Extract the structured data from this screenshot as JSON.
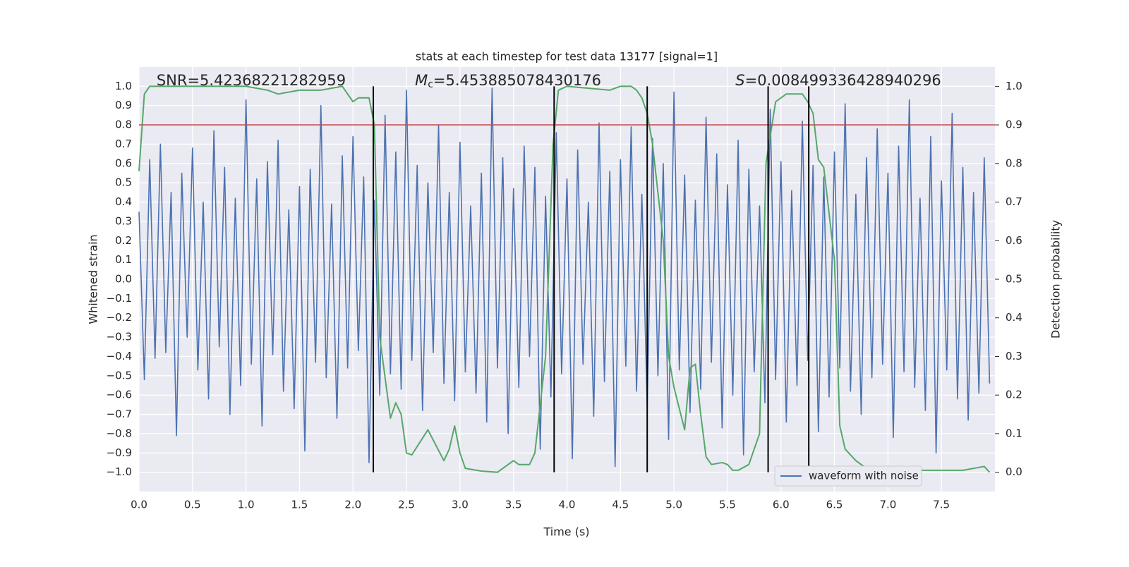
{
  "chart_data": {
    "type": "line",
    "title": "stats at each timestep for test data 13177 [signal=1]",
    "xlabel": "Time (s)",
    "ylabel": "Whitened strain",
    "y2label": "Detection probability",
    "annotations": [
      [
        "SNR=5.42368221282959"
      ],
      [
        "M",
        "c",
        "=5.453885078430176"
      ],
      [
        "S",
        "=0.008499336428940296"
      ]
    ],
    "xlim": [
      0,
      8
    ],
    "ylim": [
      -1.1,
      1.1
    ],
    "y2lim": [
      -0.05,
      1.05
    ],
    "xticks": [
      {
        "value": 0,
        "label": "0.0"
      },
      0.5,
      {
        "value": 1,
        "label": "1.0"
      },
      1.5,
      {
        "value": 2,
        "label": "2.0"
      },
      2.5,
      {
        "value": 3,
        "label": "3.0"
      },
      3.5,
      {
        "value": 4,
        "label": "4.0"
      },
      4.5,
      {
        "value": 5,
        "label": "5.0"
      },
      5.5,
      {
        "value": 6,
        "label": "6.0"
      },
      6.5,
      {
        "value": 7,
        "label": "7.0"
      },
      7.5
    ],
    "yticks": [
      {
        "value": 1,
        "label": "1.0"
      },
      0.9,
      0.8,
      0.7,
      0.6,
      0.5,
      0.4,
      0.3,
      0.2,
      0.1,
      {
        "value": 0,
        "label": "0.0"
      },
      {
        "value": -0.1,
        "label": "−0.1"
      },
      {
        "value": -0.2,
        "label": "−0.2"
      },
      {
        "value": -0.3,
        "label": "−0.3"
      },
      {
        "value": -0.4,
        "label": "−0.4"
      },
      {
        "value": -0.5,
        "label": "−0.5"
      },
      {
        "value": -0.6,
        "label": "−0.6"
      },
      {
        "value": -0.7,
        "label": "−0.7"
      },
      {
        "value": -0.8,
        "label": "−0.8"
      },
      {
        "value": -0.9,
        "label": "−0.9"
      },
      {
        "value": -1,
        "label": "−1.0"
      }
    ],
    "y2ticks": [
      {
        "value": 0,
        "label": "0.0"
      },
      0.1,
      0.2,
      0.3,
      0.4,
      0.5,
      0.6,
      0.7,
      0.8,
      0.9,
      {
        "value": 1,
        "label": "1.0"
      }
    ],
    "grid": true,
    "legend": "lower right",
    "threshold": {
      "value": 0.8,
      "color": "#c44e52"
    },
    "markers": {
      "x": [
        2.19,
        3.88,
        4.75,
        5.88,
        6.26
      ],
      "ymin": -1,
      "ymax": 1,
      "color": "#000000"
    },
    "series": [
      {
        "name": "waveform with noise",
        "color": "#4c72b0",
        "x": [
          0,
          0.05,
          0.1,
          0.15,
          0.2,
          0.25,
          0.3,
          0.35,
          0.4,
          0.45,
          0.5,
          0.55,
          0.6,
          0.65,
          0.7,
          0.75,
          0.8,
          0.85,
          0.9,
          0.95,
          1,
          1.05,
          1.1,
          1.15,
          1.2,
          1.25,
          1.3,
          1.35,
          1.4,
          1.45,
          1.5,
          1.55,
          1.6,
          1.65,
          1.7,
          1.75,
          1.8,
          1.85,
          1.9,
          1.95,
          2,
          2.05,
          2.1,
          2.15,
          2.2,
          2.25,
          2.3,
          2.35,
          2.4,
          2.45,
          2.5,
          2.55,
          2.6,
          2.65,
          2.7,
          2.75,
          2.8,
          2.85,
          2.9,
          2.95,
          3,
          3.05,
          3.1,
          3.15,
          3.2,
          3.25,
          3.3,
          3.35,
          3.4,
          3.45,
          3.5,
          3.55,
          3.6,
          3.65,
          3.7,
          3.75,
          3.8,
          3.85,
          3.9,
          3.95,
          4,
          4.05,
          4.1,
          4.15,
          4.2,
          4.25,
          4.3,
          4.35,
          4.4,
          4.45,
          4.5,
          4.55,
          4.6,
          4.65,
          4.7,
          4.75,
          4.8,
          4.85,
          4.9,
          4.95,
          5,
          5.05,
          5.1,
          5.15,
          5.2,
          5.25,
          5.3,
          5.35,
          5.4,
          5.45,
          5.5,
          5.55,
          5.6,
          5.65,
          5.7,
          5.75,
          5.8,
          5.85,
          5.9,
          5.95,
          6,
          6.05,
          6.1,
          6.15,
          6.2,
          6.25,
          6.3,
          6.35,
          6.4,
          6.45,
          6.5,
          6.55,
          6.6,
          6.65,
          6.7,
          6.75,
          6.8,
          6.85,
          6.9,
          6.95,
          7,
          7.05,
          7.1,
          7.15,
          7.2,
          7.25,
          7.3,
          7.35,
          7.4,
          7.45,
          7.5,
          7.55,
          7.6,
          7.65,
          7.7,
          7.75,
          7.8,
          7.85,
          7.9,
          7.95
        ],
        "values": [
          0.35,
          -0.52,
          0.62,
          -0.41,
          0.7,
          -0.38,
          0.45,
          -0.81,
          0.55,
          -0.3,
          0.68,
          -0.47,
          0.4,
          -0.62,
          0.77,
          -0.35,
          0.58,
          -0.7,
          0.42,
          -0.55,
          0.93,
          -0.44,
          0.52,
          -0.76,
          0.61,
          -0.39,
          0.72,
          -0.58,
          0.36,
          -0.67,
          0.48,
          -0.89,
          0.57,
          -0.43,
          0.9,
          -0.51,
          0.39,
          -0.72,
          0.64,
          -0.46,
          0.74,
          -0.37,
          0.53,
          -0.95,
          0.41,
          -0.6,
          0.85,
          -0.49,
          0.66,
          -0.57,
          0.98,
          -0.42,
          0.59,
          -0.68,
          0.5,
          -0.38,
          0.8,
          -0.54,
          0.45,
          -0.63,
          0.71,
          -0.48,
          0.38,
          -0.59,
          0.55,
          -0.74,
          0.99,
          -0.46,
          0.63,
          -0.8,
          0.47,
          -0.56,
          0.69,
          -0.4,
          0.58,
          -0.88,
          0.43,
          -0.61,
          0.76,
          -0.49,
          0.52,
          -0.93,
          0.67,
          -0.44,
          0.4,
          -0.71,
          0.81,
          -0.53,
          0.56,
          -0.97,
          0.62,
          -0.45,
          0.79,
          -0.58,
          0.44,
          -0.66,
          0.73,
          -0.5,
          0.6,
          -0.83,
          0.97,
          -0.47,
          0.54,
          -0.69,
          0.41,
          -0.57,
          0.84,
          -0.43,
          0.65,
          -0.77,
          0.49,
          -0.6,
          0.72,
          -0.91,
          0.57,
          -0.48,
          0.38,
          -0.64,
          0.88,
          -0.52,
          0.61,
          -0.74,
          0.46,
          -0.55,
          0.82,
          -0.42,
          0.59,
          -0.79,
          0.53,
          -0.61,
          0.66,
          -0.46,
          0.91,
          -0.58,
          0.44,
          -0.7,
          0.63,
          -0.51,
          0.78,
          -0.44,
          0.55,
          -0.82,
          0.69,
          -0.48,
          0.93,
          -0.56,
          0.42,
          -0.68,
          0.74,
          -0.9,
          0.51,
          -0.47,
          0.86,
          -0.62,
          0.58,
          -0.73,
          0.45,
          -0.59,
          0.63,
          -0.54
        ]
      },
      {
        "color": "#55a868",
        "axis": "y2",
        "x": [
          0,
          0.05,
          0.1,
          0.5,
          1,
          1.2,
          1.3,
          1.5,
          1.7,
          1.9,
          2,
          2.05,
          2.15,
          2.2,
          2.25,
          2.35,
          2.4,
          2.45,
          2.5,
          2.55,
          2.7,
          2.85,
          2.9,
          2.95,
          3,
          3.05,
          3.2,
          3.35,
          3.4,
          3.5,
          3.55,
          3.65,
          3.7,
          3.8,
          3.87,
          3.92,
          4,
          4.4,
          4.5,
          4.6,
          4.65,
          4.7,
          4.75,
          4.8,
          4.9,
          4.95,
          5,
          5.1,
          5.15,
          5.2,
          5.25,
          5.3,
          5.35,
          5.45,
          5.5,
          5.55,
          5.6,
          5.7,
          5.8,
          5.86,
          5.95,
          6.05,
          6.2,
          6.25,
          6.3,
          6.35,
          6.4,
          6.5,
          6.55,
          6.6,
          6.7,
          6.8,
          7,
          7.2,
          7.5,
          7.7,
          7.9,
          7.95
        ],
        "values": [
          0.78,
          0.98,
          1.0,
          1.0,
          1.0,
          0.99,
          0.98,
          0.99,
          0.99,
          1.0,
          0.96,
          0.97,
          0.97,
          0.9,
          0.35,
          0.14,
          0.18,
          0.15,
          0.05,
          0.045,
          0.11,
          0.03,
          0.06,
          0.12,
          0.05,
          0.01,
          0.003,
          0.0,
          0.01,
          0.03,
          0.02,
          0.02,
          0.05,
          0.3,
          0.85,
          0.99,
          1.0,
          0.99,
          1.0,
          1.0,
          0.99,
          0.97,
          0.93,
          0.85,
          0.6,
          0.3,
          0.22,
          0.11,
          0.27,
          0.28,
          0.15,
          0.04,
          0.02,
          0.025,
          0.02,
          0.005,
          0.005,
          0.02,
          0.1,
          0.8,
          0.96,
          0.98,
          0.98,
          0.96,
          0.93,
          0.81,
          0.79,
          0.55,
          0.12,
          0.06,
          0.03,
          0.01,
          0.0,
          0.005,
          0.005,
          0.005,
          0.015,
          0.0
        ]
      }
    ]
  }
}
